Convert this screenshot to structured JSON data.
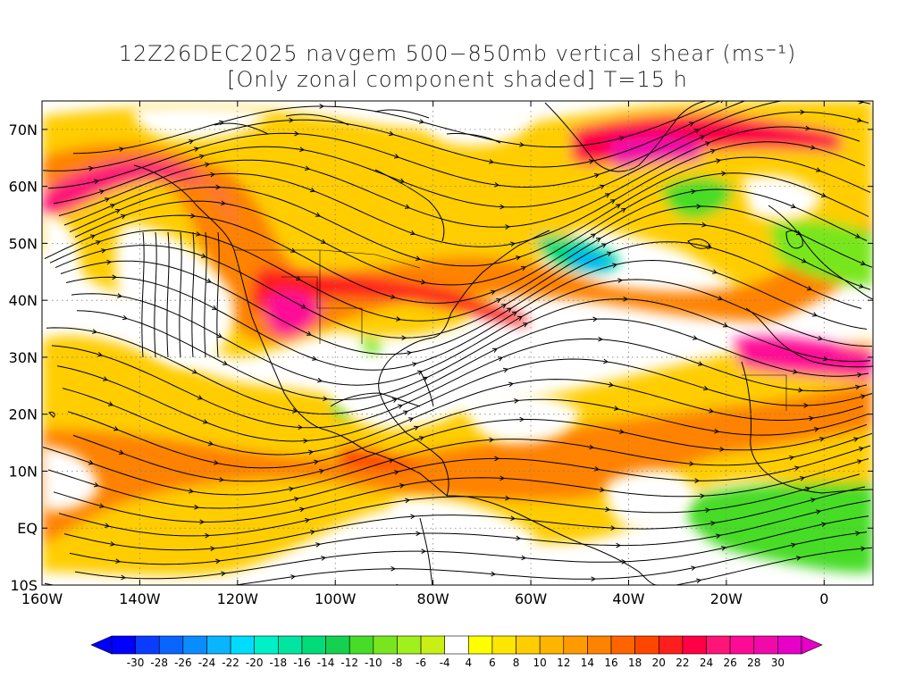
{
  "title": {
    "line1": "12Z26DEC2025 navgem 500−850mb vertical shear (ms⁻¹)",
    "line2": "[Only zonal component shaded] T=15 h"
  },
  "axes": {
    "lat_labels": [
      "70N",
      "60N",
      "50N",
      "40N",
      "30N",
      "20N",
      "10N",
      "EQ",
      "10S"
    ],
    "lat_values": [
      70,
      60,
      50,
      40,
      30,
      20,
      10,
      0,
      -10
    ],
    "lon_labels": [
      "160W",
      "140W",
      "120W",
      "100W",
      "80W",
      "60W",
      "40W",
      "20W",
      "0"
    ],
    "lon_values": [
      -160,
      -140,
      -120,
      -100,
      -80,
      -60,
      -40,
      -20,
      0
    ],
    "lon_range": [
      -160,
      10
    ],
    "lat_range": [
      -10,
      75
    ],
    "grid": "dotted"
  },
  "colorbar": {
    "labels": [
      "-30",
      "-28",
      "-26",
      "-24",
      "-22",
      "-20",
      "-18",
      "-16",
      "-14",
      "-12",
      "-10",
      "-8",
      "-6",
      "-4",
      "4",
      "6",
      "8",
      "10",
      "12",
      "14",
      "16",
      "18",
      "20",
      "22",
      "24",
      "26",
      "28",
      "30"
    ],
    "colors": [
      "#0000ff",
      "#0a3cff",
      "#0a64ff",
      "#0a8cff",
      "#0ab4ff",
      "#00dcff",
      "#00f0c8",
      "#00e6a0",
      "#00dc78",
      "#14d250",
      "#46dc28",
      "#78e61e",
      "#a0f01e",
      "#c8f014",
      "#ffffff",
      "#ffff00",
      "#ffe600",
      "#ffcd00",
      "#ffb400",
      "#ff9b00",
      "#ff8200",
      "#ff6400",
      "#ff4600",
      "#ff1e1e",
      "#ff0046",
      "#ff1478",
      "#ff0a96",
      "#f00aaa",
      "#e600c8"
    ],
    "under_color": "#0000ff",
    "over_color": "#e600c8"
  },
  "colors": {
    "coastline": "#000000",
    "streamline": "#000000"
  }
}
